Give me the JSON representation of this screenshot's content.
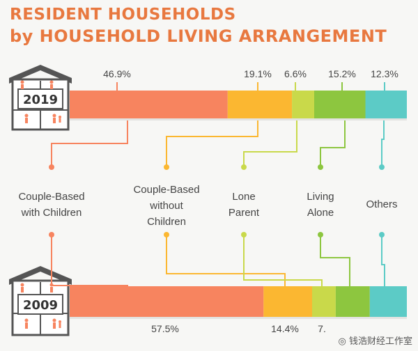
{
  "title_line1": "RESIDENT HOUSEHOLDS",
  "title_line2": "by HOUSEHOLD LIVING ARRANGEMENT",
  "watermark": "◎ 钱浩财经工作室",
  "chart_data": {
    "type": "bar",
    "orientation": "horizontal-stacked-100",
    "title": "RESIDENT HOUSEHOLDS by HOUSEHOLD LIVING ARRANGEMENT",
    "categories_years": [
      "2019",
      "2009"
    ],
    "segments": [
      {
        "name": "Couple-Based with Children",
        "label_lines": [
          "Couple-Based",
          "with Children"
        ],
        "color": "#f7845f"
      },
      {
        "name": "Couple-Based without Children",
        "label_lines": [
          "Couple-Based",
          "without",
          "Children"
        ],
        "color": "#fbb731"
      },
      {
        "name": "Lone Parent",
        "label_lines": [
          "Lone",
          "Parent"
        ],
        "color": "#c9d94a"
      },
      {
        "name": "Living Alone",
        "label_lines": [
          "Living",
          "Alone"
        ],
        "color": "#8dc63f"
      },
      {
        "name": "Others",
        "label_lines": [
          "Others"
        ],
        "color": "#5ccbc6"
      }
    ],
    "series": [
      {
        "year": "2019",
        "values": [
          46.9,
          19.1,
          6.6,
          15.2,
          12.3
        ],
        "labels": [
          "46.9%",
          "19.1%",
          "6.6%",
          "15.2%",
          "12.3%"
        ]
      },
      {
        "year": "2009",
        "values": [
          57.5,
          14.4,
          7.0,
          10.1,
          11.0
        ],
        "labels": [
          "57.5%",
          "14.4%",
          "7.",
          "",
          ""
        ]
      }
    ],
    "xlim": [
      0,
      100
    ]
  }
}
